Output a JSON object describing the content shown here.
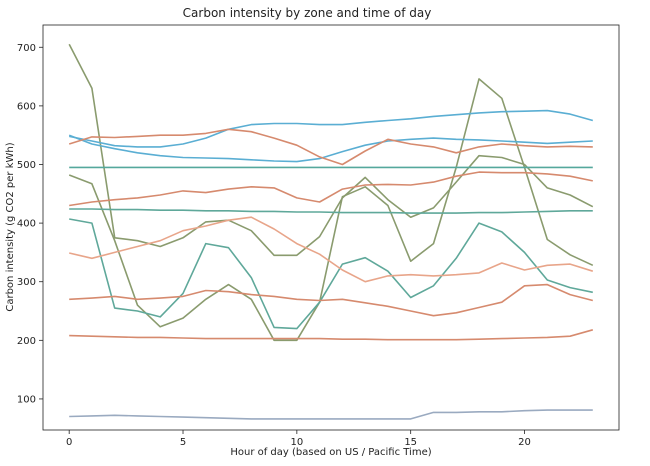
{
  "chart_data": {
    "type": "line",
    "title": "Carbon intensity by zone and time of day",
    "xlabel": "Hour of day (based on US / Pacific Time)",
    "ylabel": "Carbon intensity (g CO2 per kWh)",
    "xlim": [
      -1.15,
      24.15
    ],
    "ylim": [
      47,
      738
    ],
    "xticks": [
      0,
      5,
      10,
      15,
      20
    ],
    "yticks": [
      100,
      200,
      300,
      400,
      500,
      600,
      700
    ],
    "grid": false,
    "legend": "none",
    "x": [
      0,
      1,
      2,
      3,
      4,
      5,
      6,
      7,
      8,
      9,
      10,
      11,
      12,
      13,
      14,
      15,
      16,
      17,
      18,
      19,
      20,
      21,
      22,
      23
    ],
    "series": [
      {
        "color": "#8a9b6e",
        "values": [
          705,
          630,
          375,
          370,
          360,
          375,
          402,
          405,
          387,
          345,
          345,
          377,
          443,
          478,
          440,
          410,
          426,
          470,
          515,
          512,
          500,
          460,
          448,
          428
        ]
      },
      {
        "color": "#8a9b6e",
        "values": [
          482,
          467,
          370,
          260,
          223,
          238,
          270,
          295,
          270,
          200,
          200,
          265,
          445,
          462,
          430,
          335,
          365,
          495,
          646,
          613,
          495,
          372,
          346,
          328
        ]
      },
      {
        "color": "#5fa89a",
        "values": [
          407,
          400,
          255,
          250,
          240,
          280,
          365,
          358,
          307,
          222,
          220,
          265,
          330,
          341,
          318,
          273,
          293,
          340,
          400,
          385,
          350,
          303,
          290,
          282
        ]
      },
      {
        "color": "#55a89c",
        "values": [
          495,
          495,
          495,
          495,
          495,
          495,
          495,
          495,
          495,
          495,
          495,
          495,
          495,
          495,
          495,
          495,
          495,
          495,
          495,
          495,
          495,
          495,
          495,
          495
        ]
      },
      {
        "color": "#5fa89a",
        "values": [
          424,
          424,
          423,
          423,
          422,
          422,
          421,
          421,
          420,
          420,
          419,
          419,
          418,
          418,
          418,
          417,
          417,
          417,
          418,
          418,
          419,
          420,
          421,
          421
        ]
      },
      {
        "color": "#5aaed3",
        "values": [
          548,
          540,
          532,
          530,
          530,
          535,
          545,
          560,
          568,
          570,
          570,
          568,
          568,
          572,
          575,
          578,
          582,
          585,
          588,
          590,
          591,
          592,
          586,
          575
        ]
      },
      {
        "color": "#5aaed3",
        "values": [
          550,
          535,
          527,
          520,
          515,
          512,
          511,
          510,
          508,
          506,
          505,
          510,
          522,
          533,
          540,
          543,
          545,
          543,
          542,
          540,
          538,
          536,
          538,
          540
        ]
      },
      {
        "color": "#d68a6e",
        "values": [
          535,
          547,
          546,
          548,
          550,
          550,
          553,
          560,
          556,
          545,
          533,
          513,
          500,
          523,
          543,
          535,
          530,
          520,
          530,
          535,
          532,
          530,
          531,
          530
        ]
      },
      {
        "color": "#d68a6e",
        "values": [
          430,
          436,
          440,
          443,
          448,
          455,
          452,
          458,
          462,
          460,
          443,
          436,
          458,
          465,
          466,
          465,
          470,
          480,
          487,
          486,
          486,
          484,
          480,
          472
        ]
      },
      {
        "color": "#e8a58a",
        "values": [
          349,
          340,
          350,
          360,
          370,
          387,
          395,
          405,
          410,
          390,
          365,
          347,
          320,
          300,
          310,
          312,
          310,
          312,
          315,
          332,
          320,
          328,
          330,
          318
        ]
      },
      {
        "color": "#d68a6e",
        "values": [
          270,
          272,
          275,
          270,
          272,
          275,
          285,
          283,
          278,
          275,
          270,
          268,
          270,
          264,
          258,
          250,
          242,
          247,
          256,
          265,
          293,
          295,
          278,
          268
        ]
      },
      {
        "color": "#d68a6e",
        "values": [
          208,
          207,
          206,
          205,
          205,
          204,
          203,
          203,
          203,
          203,
          203,
          203,
          202,
          202,
          201,
          201,
          201,
          201,
          202,
          203,
          204,
          205,
          207,
          218
        ]
      },
      {
        "color": "#9aaac0",
        "values": [
          70,
          71,
          72,
          71,
          70,
          69,
          68,
          67,
          66,
          66,
          66,
          66,
          66,
          66,
          66,
          66,
          77,
          77,
          78,
          78,
          80,
          81,
          81,
          81
        ]
      }
    ]
  }
}
